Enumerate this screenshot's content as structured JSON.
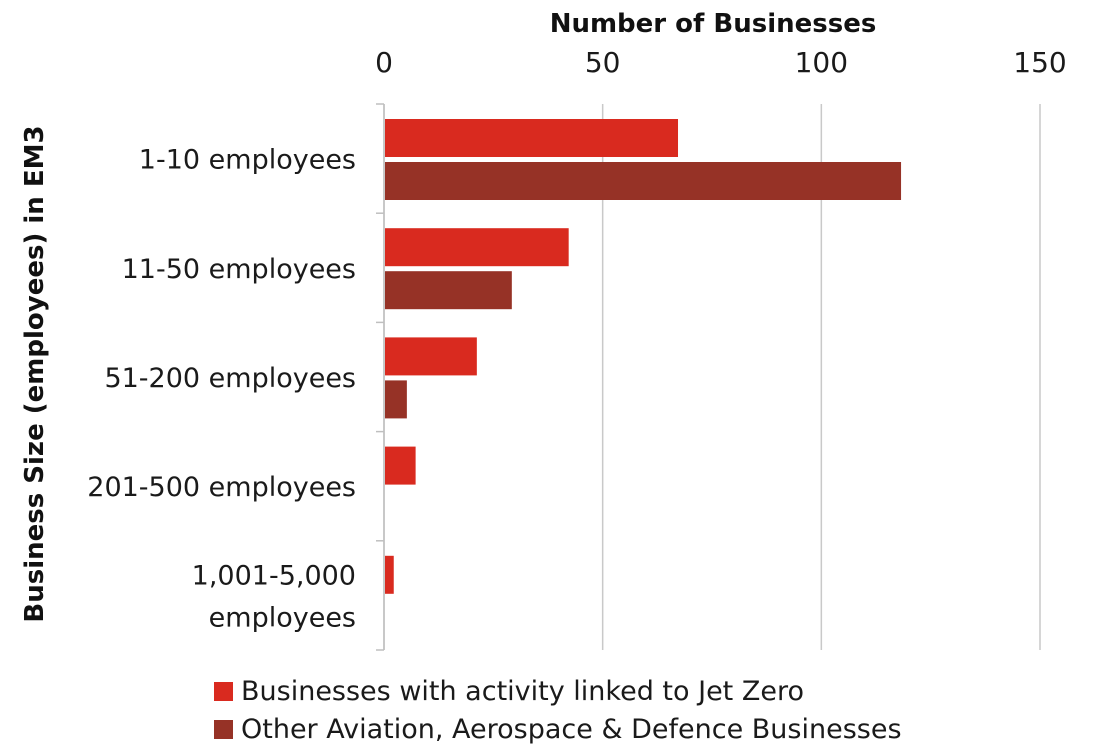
{
  "chart_data": {
    "type": "bar",
    "orientation": "horizontal",
    "xlabel": "Number of Businesses",
    "ylabel": "Business Size (employees) in EM3",
    "xlim": [
      0,
      150
    ],
    "xticks": [
      0,
      50,
      100,
      150
    ],
    "categories": [
      [
        "1-10 employees"
      ],
      [
        "11-50 employees"
      ],
      [
        "51-200 employees"
      ],
      [
        "201-500 employees"
      ],
      [
        "1,001-5,000",
        "employees"
      ]
    ],
    "series": [
      {
        "name": "Businesses with activity linked to Jet Zero",
        "color": "#d92a1f",
        "values": [
          67,
          42,
          21,
          7,
          2
        ]
      },
      {
        "name": "Other Aviation, Aerospace & Defence Businesses",
        "color": "#963226",
        "values": [
          118,
          29,
          5,
          0,
          0
        ]
      }
    ],
    "grid": true,
    "legend_position": "bottom"
  }
}
